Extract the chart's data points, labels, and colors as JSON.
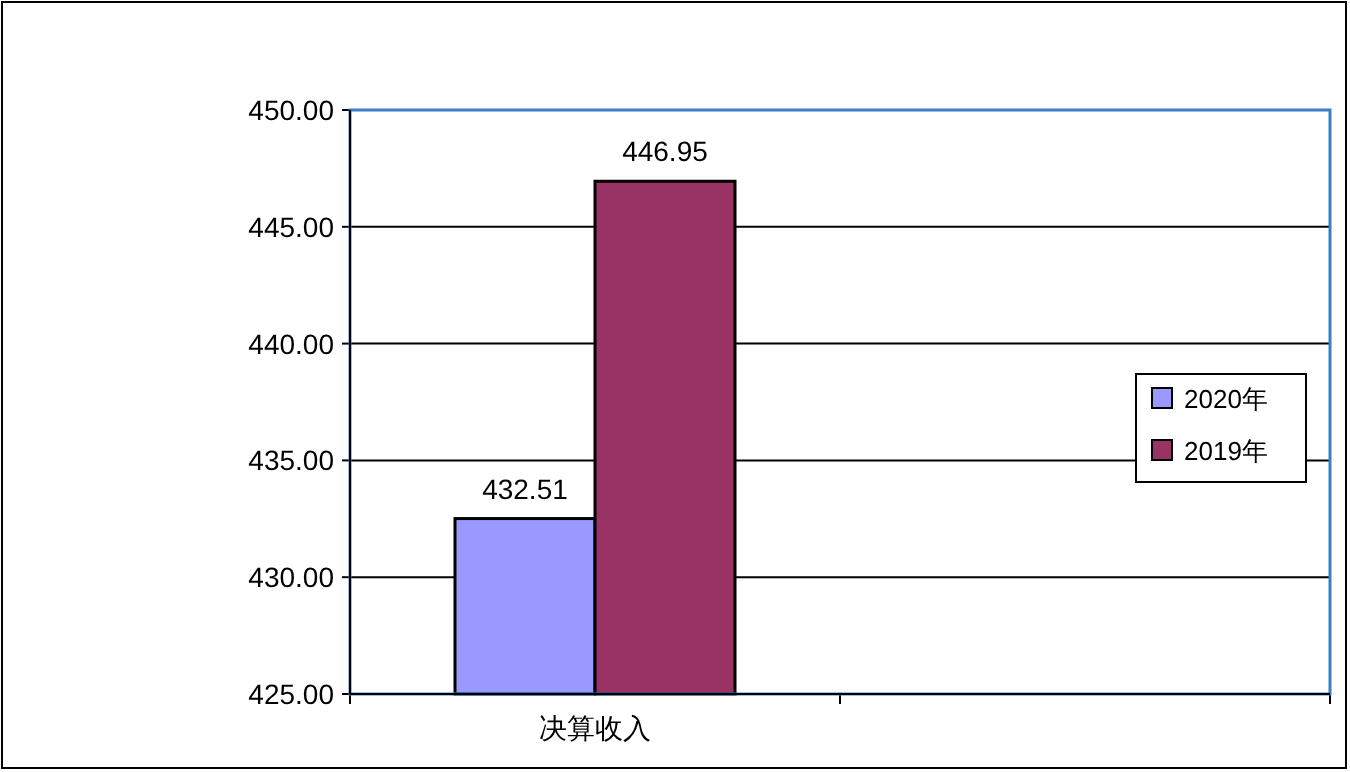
{
  "chart_data": {
    "type": "bar",
    "categories": [
      "决算收入",
      null
    ],
    "series": [
      {
        "name": "2020年",
        "color": "#9999ff",
        "values": [
          432.51,
          null
        ]
      },
      {
        "name": "2019年",
        "color": "#993366",
        "values": [
          446.95,
          null
        ]
      }
    ],
    "ylim": [
      425,
      450
    ],
    "yticks": [
      {
        "value": 425,
        "label": "425.00"
      },
      {
        "value": 430,
        "label": "430.00"
      },
      {
        "value": 435,
        "label": "435.00"
      },
      {
        "value": 440,
        "label": "440.00"
      },
      {
        "value": 445,
        "label": "445.00"
      },
      {
        "value": 450,
        "label": "450.00"
      }
    ],
    "grid": "y",
    "legend": "right",
    "data_labels": true
  }
}
